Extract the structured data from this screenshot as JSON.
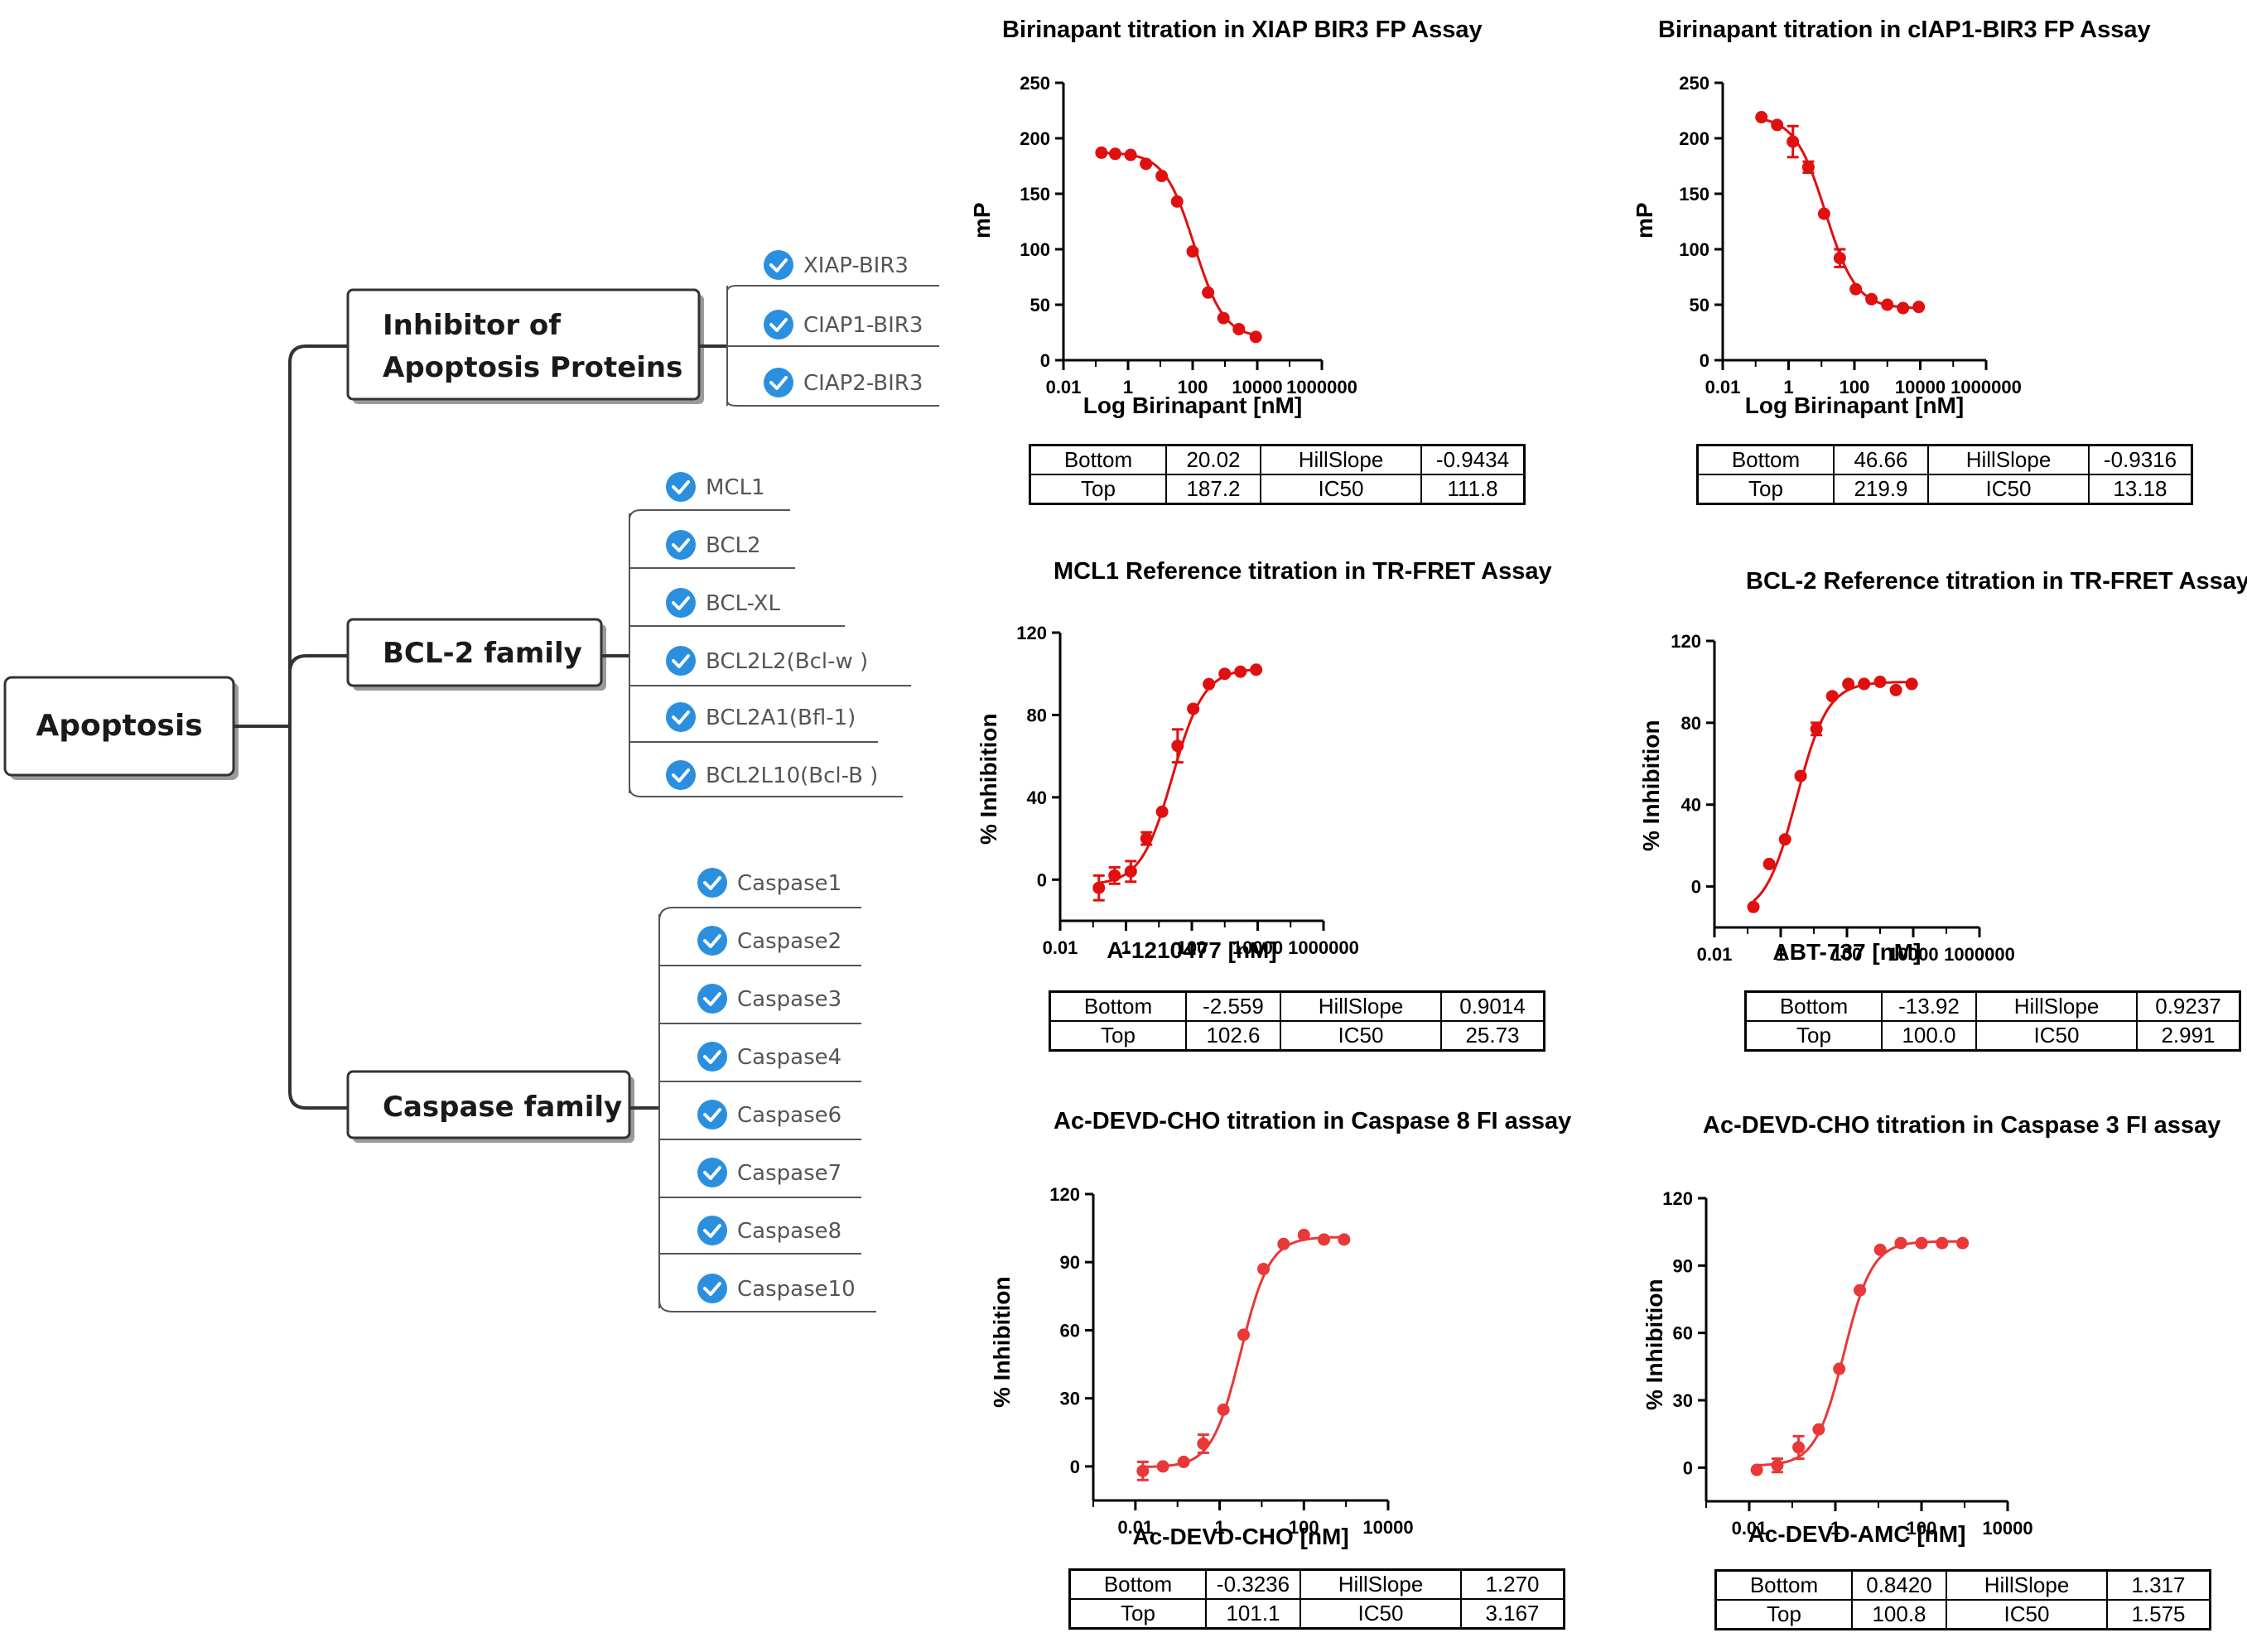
{
  "mindmap": {
    "root": "Apoptosis",
    "branches": [
      {
        "label_lines": [
          "Inhibitor of",
          "Apoptosis Proteins"
        ],
        "leaves": [
          "XIAP-BIR3",
          "CIAP1-BIR3",
          "CIAP2-BIR3"
        ]
      },
      {
        "label_lines": [
          "BCL-2 family"
        ],
        "leaves": [
          "MCL1",
          "BCL2",
          "BCL-XL",
          "BCL2L2(Bcl-w )",
          "BCL2A1(Bfl-1)",
          "BCL2L10(Bcl-B )"
        ]
      },
      {
        "label_lines": [
          "Caspase family"
        ],
        "leaves": [
          "Caspase1",
          "Caspase2",
          "Caspase3",
          "Caspase4",
          "Caspase6",
          "Caspase7",
          "Caspase8",
          "Caspase10"
        ]
      }
    ],
    "check_icon_color": "#2b8fe0"
  },
  "chart_data": [
    {
      "type": "scatter",
      "title": "Birinapant titration in XIAP BIR3 FP Assay",
      "xlabel": "Log Birinapant [nM]",
      "ylabel": "mP",
      "x_scale": "log",
      "xlim": [
        0.01,
        1000000
      ],
      "x_ticks": [
        "0.01",
        "1",
        "100",
        "10000",
        "1000000"
      ],
      "ylim": [
        0,
        250
      ],
      "y_ticks": [
        "0",
        "50",
        "100",
        "150",
        "200",
        "250"
      ],
      "color": "#e01010",
      "fit": {
        "model": "4PL",
        "bottom": 20.02,
        "top": 187.2,
        "hillslope": -0.9434,
        "ic50": 111.8
      },
      "series": [
        {
          "x": [
            0.15,
            0.4,
            1.2,
            3.6,
            11,
            33,
            100,
            300,
            900,
            2700,
            9000
          ],
          "y": [
            187,
            186,
            185,
            177,
            166,
            143,
            98,
            61,
            38,
            28,
            21
          ]
        }
      ],
      "params": [
        [
          "Bottom",
          "20.02",
          "HillSlope",
          "-0.9434"
        ],
        [
          "Top",
          "187.2",
          "IC50",
          "111.8"
        ]
      ]
    },
    {
      "type": "scatter",
      "title": "Birinapant titration in cIAP1-BIR3  FP Assay",
      "xlabel": "Log Birinapant [nM]",
      "ylabel": "mP",
      "x_scale": "log",
      "xlim": [
        0.01,
        1000000
      ],
      "x_ticks": [
        "0.01",
        "1",
        "100",
        "10000",
        "1000000"
      ],
      "ylim": [
        0,
        250
      ],
      "y_ticks": [
        "0",
        "50",
        "100",
        "150",
        "200",
        "250"
      ],
      "color": "#e01010",
      "fit": {
        "model": "4PL",
        "bottom": 46.66,
        "top": 219.9,
        "hillslope": -0.9316,
        "ic50": 13.18
      },
      "series": [
        {
          "x": [
            0.15,
            0.45,
            1.35,
            4,
            12,
            36,
            110,
            330,
            1000,
            3000,
            9000
          ],
          "y": [
            219,
            212,
            197,
            174,
            132,
            92,
            64,
            55,
            50,
            47,
            48
          ],
          "err": [
            0,
            0,
            14,
            5,
            0,
            8,
            0,
            0,
            0,
            0,
            0
          ]
        }
      ],
      "params": [
        [
          "Bottom",
          "46.66",
          "HillSlope",
          "-0.9316"
        ],
        [
          "Top",
          "219.9",
          "IC50",
          "13.18"
        ]
      ]
    },
    {
      "type": "scatter",
      "title": "MCL1 Reference titration in TR-FRET Assay",
      "xlabel": "A-1210477 [nM]",
      "ylabel": "% Inhibition",
      "x_scale": "log",
      "xlim": [
        0.01,
        1000000
      ],
      "x_ticks": [
        "0.01",
        "1",
        "100",
        "10000",
        "1000000"
      ],
      "ylim": [
        -20,
        120
      ],
      "y_ticks": [
        "0",
        "40",
        "80",
        "120"
      ],
      "color": "#e01010",
      "fit": {
        "model": "4PL",
        "bottom": -2.559,
        "top": 102.6,
        "hillslope": 0.9014,
        "ic50": 25.73
      },
      "series": [
        {
          "x": [
            0.15,
            0.45,
            1.4,
            4.2,
            12.5,
            37,
            110,
            330,
            1000,
            3000,
            9000
          ],
          "y": [
            -4,
            2,
            4,
            20,
            33,
            65,
            83,
            95,
            100,
            101,
            102
          ],
          "err": [
            6,
            4,
            5,
            3,
            0,
            8,
            0,
            0,
            0,
            0,
            0
          ]
        }
      ],
      "params": [
        [
          "Bottom",
          "-2.559",
          "HillSlope",
          "0.9014"
        ],
        [
          "Top",
          "102.6",
          "IC50",
          "25.73"
        ]
      ]
    },
    {
      "type": "scatter",
      "title": "BCL-2 Reference titration in TR-FRET Assay",
      "xlabel": "ABT-737 [nM]",
      "ylabel": "% Inhibition",
      "x_scale": "log",
      "xlim": [
        0.01,
        1000000
      ],
      "x_ticks": [
        "0.01",
        "1",
        "100",
        "10000",
        "1000000"
      ],
      "ylim": [
        -20,
        120
      ],
      "y_ticks": [
        "0",
        "40",
        "80",
        "120"
      ],
      "color": "#e01010",
      "fit": {
        "model": "4PL",
        "bottom": -13.92,
        "top": 100.0,
        "hillslope": 0.9237,
        "ic50": 2.991
      },
      "series": [
        {
          "x": [
            0.15,
            0.45,
            1.35,
            4,
            12,
            36,
            110,
            330,
            1000,
            3000,
            9000
          ],
          "y": [
            -10,
            11,
            23,
            54,
            77,
            93,
            99,
            99,
            100,
            96,
            99
          ],
          "err": [
            0,
            0,
            0,
            0,
            3,
            0,
            0,
            0,
            0,
            0,
            0
          ]
        }
      ],
      "params": [
        [
          "Bottom",
          "-13.92",
          "HillSlope",
          "0.9237"
        ],
        [
          "Top",
          "100.0",
          "IC50",
          "2.991"
        ]
      ]
    },
    {
      "type": "scatter",
      "title": "Ac-DEVD-CHO titration in Caspase 8 FI assay",
      "xlabel": "Ac-DEVD-CHO [nM]",
      "ylabel": "% Inhibition",
      "x_scale": "log",
      "xlim": [
        0.001,
        10000
      ],
      "x_ticks": [
        "0.01",
        "1",
        "100",
        "10000"
      ],
      "ylim": [
        -15,
        120
      ],
      "y_ticks": [
        "0",
        "30",
        "60",
        "90",
        "120"
      ],
      "color": "#e83838",
      "fit": {
        "model": "4PL",
        "bottom": -0.3236,
        "top": 101.1,
        "hillslope": 1.27,
        "ic50": 3.167
      },
      "series": [
        {
          "x": [
            0.015,
            0.045,
            0.14,
            0.41,
            1.23,
            3.7,
            11,
            33,
            100,
            300,
            900
          ],
          "y": [
            -2,
            0,
            2,
            10,
            25,
            58,
            87,
            98,
            102,
            100,
            100
          ],
          "err": [
            4,
            0,
            0,
            4,
            0,
            0,
            0,
            0,
            0,
            0,
            0
          ]
        }
      ],
      "params": [
        [
          "Bottom",
          "-0.3236",
          "HillSlope",
          "1.270"
        ],
        [
          "Top",
          "101.1",
          "IC50",
          "3.167"
        ]
      ]
    },
    {
      "type": "scatter",
      "title": "Ac-DEVD-CHO titration in Caspase 3 FI assay",
      "xlabel": "Ac-DEVD-AMC [nM]",
      "ylabel": "% Inhibition",
      "x_scale": "log",
      "xlim": [
        0.001,
        10000
      ],
      "x_ticks": [
        "0.01",
        "1",
        "100",
        "10000"
      ],
      "ylim": [
        -15,
        120
      ],
      "y_ticks": [
        "0",
        "30",
        "60",
        "90",
        "120"
      ],
      "color": "#e83838",
      "fit": {
        "model": "4PL",
        "bottom": 0.842,
        "top": 100.8,
        "hillslope": 1.317,
        "ic50": 1.575
      },
      "series": [
        {
          "x": [
            0.015,
            0.045,
            0.14,
            0.41,
            1.23,
            3.7,
            11,
            33,
            100,
            300,
            900
          ],
          "y": [
            -1,
            1,
            9,
            17,
            44,
            79,
            97,
            100,
            100,
            100,
            100
          ],
          "err": [
            0,
            3,
            5,
            0,
            0,
            0,
            0,
            0,
            0,
            0,
            0
          ]
        }
      ],
      "params": [
        [
          "Bottom",
          "0.8420",
          "HillSlope",
          "1.317"
        ],
        [
          "Top",
          "100.8",
          "IC50",
          "1.575"
        ]
      ]
    }
  ]
}
